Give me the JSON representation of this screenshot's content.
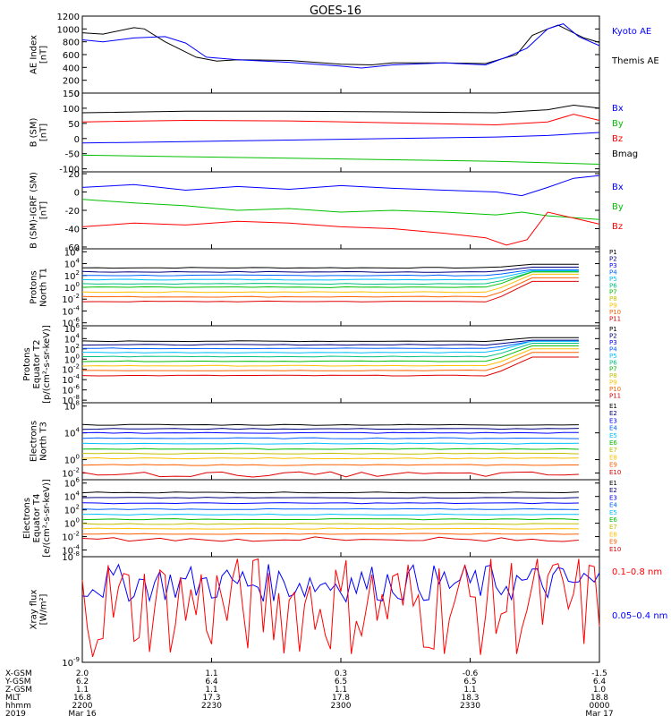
{
  "title": "GOES-16",
  "colors": {
    "black": "#000000",
    "blue": "#0000ff",
    "green": "#00c000",
    "red": "#ff0000",
    "p_palette": [
      "#000000",
      "#000080",
      "#0000ff",
      "#0060ff",
      "#00c0ff",
      "#00c080",
      "#00c000",
      "#c0c000",
      "#ffc000",
      "#ff6000",
      "#e00000"
    ]
  },
  "chart_data": [
    {
      "type": "line",
      "ylabel": [
        "AE Index",
        "[nT]"
      ],
      "yticks": [
        "1200",
        "1000",
        "800",
        "600",
        "400",
        "200",
        "0"
      ],
      "ylim": [
        0,
        1200
      ],
      "legend": [
        {
          "label": "Kyoto AE",
          "color": "#0000ff"
        },
        {
          "label": "Themis AE",
          "color": "#000000"
        }
      ],
      "series": [
        {
          "color": "#000000",
          "x": [
            0,
            0.04,
            0.1,
            0.12,
            0.16,
            0.22,
            0.26,
            0.3,
            0.4,
            0.5,
            0.56,
            0.6,
            0.7,
            0.78,
            0.84,
            0.87,
            0.9,
            0.92,
            0.94,
            0.97,
            1
          ],
          "y": [
            940,
            920,
            1020,
            1000,
            800,
            560,
            500,
            520,
            510,
            450,
            440,
            470,
            470,
            460,
            600,
            900,
            1000,
            1060,
            980,
            860,
            790
          ]
        },
        {
          "color": "#0000ff",
          "x": [
            0,
            0.04,
            0.1,
            0.16,
            0.2,
            0.24,
            0.3,
            0.4,
            0.5,
            0.54,
            0.6,
            0.7,
            0.78,
            0.82,
            0.86,
            0.9,
            0.93,
            0.96,
            1
          ],
          "y": [
            830,
            800,
            860,
            880,
            780,
            560,
            520,
            480,
            420,
            390,
            440,
            470,
            440,
            560,
            700,
            1000,
            1080,
            880,
            740
          ]
        }
      ]
    },
    {
      "type": "line",
      "ylabel": [
        "B (SM)",
        "[nT]"
      ],
      "yticks": [
        "150",
        "100",
        "50",
        "0",
        "-50",
        "-100"
      ],
      "ylim": [
        -110,
        150
      ],
      "legend": [
        {
          "label": "Bx",
          "color": "#0000ff"
        },
        {
          "label": "By",
          "color": "#00c000"
        },
        {
          "label": "Bz",
          "color": "#ff0000"
        },
        {
          "label": "Bmag",
          "color": "#000000"
        }
      ],
      "series": [
        {
          "color": "#000000",
          "x": [
            0,
            0.2,
            0.4,
            0.6,
            0.8,
            0.9,
            0.95,
            1
          ],
          "y": [
            85,
            90,
            90,
            88,
            85,
            95,
            110,
            100
          ]
        },
        {
          "color": "#ff0000",
          "x": [
            0,
            0.2,
            0.4,
            0.6,
            0.8,
            0.9,
            0.95,
            1
          ],
          "y": [
            55,
            60,
            58,
            52,
            45,
            55,
            80,
            60
          ]
        },
        {
          "color": "#0000ff",
          "x": [
            0,
            0.2,
            0.4,
            0.6,
            0.8,
            0.9,
            1
          ],
          "y": [
            -15,
            -10,
            -5,
            0,
            5,
            10,
            20
          ]
        },
        {
          "color": "#00c000",
          "x": [
            0,
            0.2,
            0.4,
            0.6,
            0.8,
            1
          ],
          "y": [
            -55,
            -60,
            -65,
            -70,
            -75,
            -85
          ]
        }
      ]
    },
    {
      "type": "line",
      "ylabel": [
        "B (SM)-IGRF (SM)",
        "[nT]"
      ],
      "yticks": [
        "20",
        "0",
        "-20",
        "-40",
        "-60"
      ],
      "ylim": [
        -62,
        22
      ],
      "legend": [
        {
          "label": "Bx",
          "color": "#0000ff"
        },
        {
          "label": "By",
          "color": "#00c000"
        },
        {
          "label": "Bz",
          "color": "#ff0000"
        }
      ],
      "series": [
        {
          "color": "#0000ff",
          "x": [
            0,
            0.1,
            0.2,
            0.3,
            0.4,
            0.5,
            0.6,
            0.7,
            0.8,
            0.85,
            0.9,
            0.95,
            1
          ],
          "y": [
            5,
            8,
            2,
            6,
            3,
            7,
            4,
            2,
            0,
            -4,
            5,
            15,
            18
          ]
        },
        {
          "color": "#00c000",
          "x": [
            0,
            0.1,
            0.2,
            0.3,
            0.4,
            0.5,
            0.6,
            0.7,
            0.8,
            0.85,
            0.9,
            1
          ],
          "y": [
            -8,
            -12,
            -15,
            -20,
            -18,
            -22,
            -20,
            -22,
            -25,
            -22,
            -26,
            -30
          ]
        },
        {
          "color": "#ff0000",
          "x": [
            0,
            0.1,
            0.2,
            0.3,
            0.4,
            0.5,
            0.6,
            0.7,
            0.78,
            0.82,
            0.86,
            0.9,
            1
          ],
          "y": [
            -38,
            -34,
            -36,
            -32,
            -34,
            -38,
            -40,
            -45,
            -50,
            -58,
            -52,
            -22,
            -35
          ]
        }
      ]
    },
    {
      "type": "line",
      "yscale": "log",
      "ylabel": [
        "Protons",
        "North T1"
      ],
      "yticks": [
        "10^6",
        "10^4",
        "10^2",
        "10^0",
        "10^-2",
        "10^-4",
        "10^-6"
      ],
      "ylim_log10": [
        -6.5,
        6.5
      ],
      "legend_labels": [
        "P1",
        "P2",
        "P3",
        "P4",
        "P5",
        "P6",
        "P7",
        "P8",
        "P9",
        "P10",
        "P11"
      ],
      "levels": [
        3.3,
        2.6,
        2.0,
        1.3,
        0.6,
        0.0,
        -0.8,
        -1.6,
        -2.4
      ],
      "rise_x": 0.79,
      "rise": [
        0.6,
        0.8,
        1.0,
        1.5,
        2.0,
        2.6,
        3.0,
        3.2,
        3.4
      ]
    },
    {
      "type": "line",
      "yscale": "log",
      "ylabel": [
        "Protons",
        "Equator T2",
        "[p/(cm²-s-sr-keV)]"
      ],
      "yticks": [
        "10^6",
        "10^4",
        "10^2",
        "10^0",
        "10^-2",
        "10^-4",
        "10^-6",
        "10^-8"
      ],
      "ylim_log10": [
        -8.5,
        6.5
      ],
      "legend_labels": [
        "P1",
        "P2",
        "P3",
        "P4",
        "P5",
        "P6",
        "P7",
        "P8",
        "P9",
        "P10",
        "P11"
      ],
      "levels": [
        3.5,
        2.8,
        2.1,
        1.3,
        0.5,
        -0.4,
        -1.3,
        -2.2,
        -3.2
      ],
      "rise_x": 0.79,
      "rise": [
        0.7,
        0.9,
        1.4,
        2.2,
        2.6,
        3.0,
        3.3,
        3.5,
        3.6
      ]
    },
    {
      "type": "line",
      "yscale": "log",
      "ylabel": [
        "Electrons",
        "North T3"
      ],
      "yticks": [
        "10^8",
        "10^4",
        "10^0",
        "10^-2"
      ],
      "ylim_log10": [
        -3,
        8.5
      ],
      "legend_labels": [
        "E1",
        "E2",
        "E3",
        "E4",
        "E5",
        "E6",
        "E7",
        "E8",
        "E9",
        "E10"
      ],
      "levels": [
        5.2,
        4.6,
        4.0,
        3.2,
        2.4,
        1.6,
        0.9,
        0.2,
        -0.8,
        -2.2
      ]
    },
    {
      "type": "line",
      "yscale": "log",
      "ylabel": [
        "Electrons",
        "Equator T4",
        "[e/(cm²-s-sr-keV)]"
      ],
      "yticks": [
        "10^6",
        "10^4",
        "10^2",
        "10^0",
        "10^-2",
        "10^-4"
      ],
      "ylim_log10": [
        -5,
        6.5
      ],
      "legend_labels": [
        "E1",
        "E2",
        "E3",
        "E4",
        "E5",
        "E6",
        "E7",
        "E8",
        "E9",
        "E10"
      ],
      "levels": [
        4.6,
        3.8,
        3.0,
        2.1,
        1.3,
        0.6,
        -0.1,
        -0.8,
        -1.6,
        -2.4
      ]
    },
    {
      "type": "line",
      "yscale": "log",
      "ylabel": [
        "Xray flux",
        "[W/m²]"
      ],
      "yticks": [
        "10^-8",
        "10^-9"
      ],
      "ylim_log10": [
        -9,
        -8
      ],
      "legend": [
        {
          "label": "0.1–0.8 nm",
          "color": "#ff0000"
        },
        {
          "label": "0.05–0.4 nm",
          "color": "#0000ff"
        }
      ]
    }
  ],
  "x_axis": {
    "row_labels": [
      "X-GSM",
      "Y-GSM",
      "Z-GSM",
      "MLT",
      "hhmm",
      "2019"
    ],
    "columns": [
      [
        "2.0",
        "6.2",
        "1.1",
        "16.8",
        "2200",
        "Mar 16"
      ],
      [
        "1.1",
        "6.4",
        "1.1",
        "17.3",
        "2230",
        ""
      ],
      [
        "0.3",
        "6.5",
        "1.1",
        "17.8",
        "2300",
        ""
      ],
      [
        "-0.6",
        "6.5",
        "1.1",
        "18.3",
        "2330",
        ""
      ],
      [
        "-1.5",
        "6.4",
        "1.0",
        "18.8",
        "0000",
        "Mar 17"
      ]
    ]
  }
}
